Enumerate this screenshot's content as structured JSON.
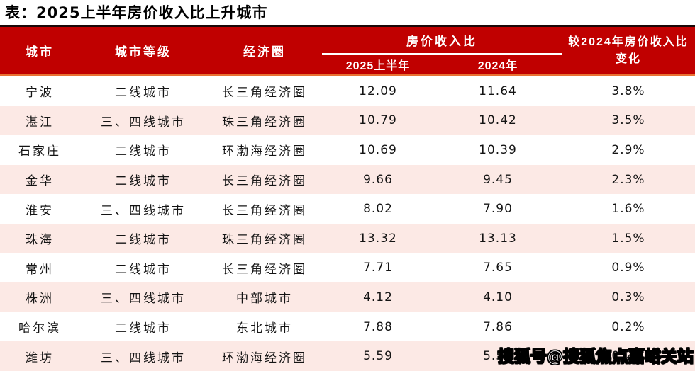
{
  "chart_data": {
    "type": "table",
    "title": "表：2025上半年房价收入比上升城市",
    "headers": {
      "city": "城市",
      "tier": "城市等级",
      "region": "经济圈",
      "ratio_group": "房价收入比",
      "h2025": "2025上半年",
      "h2024": "2024年",
      "change": "较2024年房价收入比变化"
    },
    "rows": [
      {
        "city": "宁波",
        "tier": "二线城市",
        "region": "长三角经济圈",
        "r2025": "12.09",
        "r2024": "11.64",
        "change": "3.8%"
      },
      {
        "city": "湛江",
        "tier": "三、四线城市",
        "region": "珠三角经济圈",
        "r2025": "10.79",
        "r2024": "10.42",
        "change": "3.5%"
      },
      {
        "city": "石家庄",
        "tier": "二线城市",
        "region": "环渤海经济圈",
        "r2025": "10.69",
        "r2024": "10.39",
        "change": "2.9%"
      },
      {
        "city": "金华",
        "tier": "二线城市",
        "region": "长三角经济圈",
        "r2025": "9.66",
        "r2024": "9.45",
        "change": "2.3%"
      },
      {
        "city": "淮安",
        "tier": "三、四线城市",
        "region": "长三角经济圈",
        "r2025": "8.02",
        "r2024": "7.90",
        "change": "1.6%"
      },
      {
        "city": "珠海",
        "tier": "二线城市",
        "region": "珠三角经济圈",
        "r2025": "13.32",
        "r2024": "13.13",
        "change": "1.5%"
      },
      {
        "city": "常州",
        "tier": "二线城市",
        "region": "长三角经济圈",
        "r2025": "7.71",
        "r2024": "7.65",
        "change": "0.9%"
      },
      {
        "city": "株洲",
        "tier": "三、四线城市",
        "region": "中部城市",
        "r2025": "4.12",
        "r2024": "4.10",
        "change": "0.3%"
      },
      {
        "city": "哈尔滨",
        "tier": "二线城市",
        "region": "东北城市",
        "r2025": "7.88",
        "r2024": "7.86",
        "change": "0.2%"
      },
      {
        "city": "潍坊",
        "tier": "三、四线城市",
        "region": "环渤海经济圈",
        "r2025": "5.59",
        "r2024": "5.58",
        "change": "0.2%"
      }
    ]
  },
  "watermark": "搜狐号@搜狐焦点嘉峪关站",
  "colors": {
    "header_bg": "#C00000",
    "header_text": "#FFFFFF",
    "accent_line_orange": "#E97132",
    "table_top_border": "#1A0808",
    "row_alt_bg": "#FCE9E5",
    "body_text": "#141414"
  }
}
